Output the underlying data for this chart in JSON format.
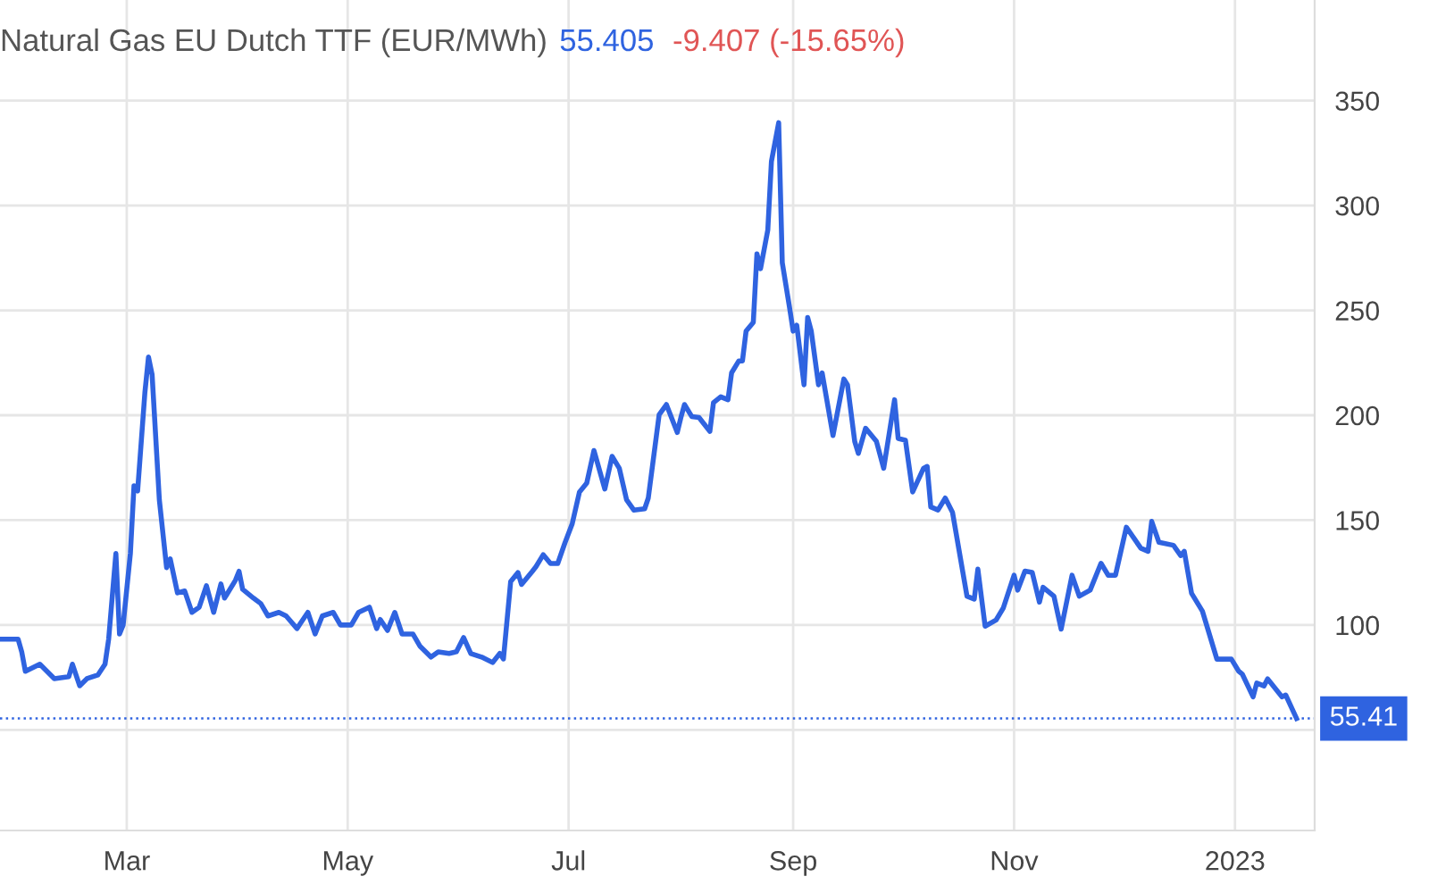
{
  "chart_data": {
    "type": "line",
    "title": "Natural Gas EU Dutch TTF (EUR/MWh)",
    "annotations": [
      "55.405",
      "-9.407 (-15.65%)"
    ],
    "x": [
      "2022-01-25",
      "2022-01-30",
      "2022-01-31",
      "2022-02-01",
      "2022-02-05",
      "2022-02-09",
      "2022-02-13",
      "2022-02-14",
      "2022-02-16",
      "2022-02-18",
      "2022-02-21",
      "2022-02-23",
      "2022-02-24",
      "2022-02-26",
      "2022-02-27",
      "2022-02-28",
      "2022-03-02",
      "2022-03-03",
      "2022-03-04",
      "2022-03-06",
      "2022-03-07",
      "2022-03-08",
      "2022-03-10",
      "2022-03-12",
      "2022-03-13",
      "2022-03-15",
      "2022-03-17",
      "2022-03-19",
      "2022-03-21",
      "2022-03-23",
      "2022-03-25",
      "2022-03-27",
      "2022-03-28",
      "2022-03-31",
      "2022-04-01",
      "2022-04-02",
      "2022-04-05",
      "2022-04-07",
      "2022-04-09",
      "2022-04-12",
      "2022-04-14",
      "2022-04-17",
      "2022-04-18",
      "2022-04-20",
      "2022-04-22",
      "2022-04-24",
      "2022-04-27",
      "2022-04-29",
      "2022-05-02",
      "2022-05-04",
      "2022-05-07",
      "2022-05-09",
      "2022-05-10",
      "2022-05-12",
      "2022-05-14",
      "2022-05-16",
      "2022-05-19",
      "2022-05-21",
      "2022-05-24",
      "2022-05-26",
      "2022-05-29",
      "2022-05-31",
      "2022-06-02",
      "2022-06-04",
      "2022-06-07",
      "2022-06-10",
      "2022-06-12",
      "2022-06-13",
      "2022-06-15",
      "2022-06-17",
      "2022-06-18",
      "2022-06-21",
      "2022-06-22",
      "2022-06-24",
      "2022-06-26",
      "2022-06-28",
      "2022-06-30",
      "2022-07-02",
      "2022-07-04",
      "2022-07-06",
      "2022-07-08",
      "2022-07-11",
      "2022-07-13",
      "2022-07-15",
      "2022-07-17",
      "2022-07-19",
      "2022-07-22",
      "2022-07-23",
      "2022-07-26",
      "2022-07-28",
      "2022-07-31",
      "2022-08-01",
      "2022-08-02",
      "2022-08-04",
      "2022-08-06",
      "2022-08-09",
      "2022-08-10",
      "2022-08-12",
      "2022-08-14",
      "2022-08-15",
      "2022-08-17",
      "2022-08-18",
      "2022-08-19",
      "2022-08-21",
      "2022-08-22",
      "2022-08-23",
      "2022-08-25",
      "2022-08-26",
      "2022-08-28",
      "2022-08-29",
      "2022-08-31",
      "2022-09-01",
      "2022-09-02",
      "2022-09-04",
      "2022-09-05",
      "2022-09-06",
      "2022-09-08",
      "2022-09-09",
      "2022-09-12",
      "2022-09-15",
      "2022-09-16",
      "2022-09-18",
      "2022-09-19",
      "2022-09-21",
      "2022-09-24",
      "2022-09-26",
      "2022-09-29",
      "2022-09-30",
      "2022-10-02",
      "2022-10-04",
      "2022-10-07",
      "2022-10-08",
      "2022-10-09",
      "2022-10-11",
      "2022-10-13",
      "2022-10-15",
      "2022-10-19",
      "2022-10-21",
      "2022-10-22",
      "2022-10-24",
      "2022-10-27",
      "2022-10-29",
      "2022-11-01",
      "2022-11-02",
      "2022-11-04",
      "2022-11-06",
      "2022-11-08",
      "2022-11-09",
      "2022-11-12",
      "2022-11-14",
      "2022-11-17",
      "2022-11-19",
      "2022-11-22",
      "2022-11-25",
      "2022-11-27",
      "2022-11-29",
      "2022-12-02",
      "2022-12-06",
      "2022-12-08",
      "2022-12-09",
      "2022-12-11",
      "2022-12-15",
      "2022-12-17",
      "2022-12-18",
      "2022-12-20",
      "2022-12-23",
      "2022-12-27",
      "2022-12-31",
      "2023-01-02",
      "2023-01-03",
      "2023-01-06",
      "2023-01-07",
      "2023-01-09",
      "2023-01-10",
      "2023-01-14",
      "2023-01-15",
      "2023-01-18"
    ],
    "series": [
      {
        "color": "#2f63e0",
        "values": [
          93.2,
          93.2,
          87.2,
          77.9,
          81.3,
          74.4,
          75.3,
          81.3,
          71.0,
          74.4,
          76.1,
          81.3,
          93.2,
          134.1,
          95.7,
          100,
          134.1,
          166.4,
          163.9,
          210.7,
          227.8,
          219.3,
          159.6,
          127.3,
          131.5,
          115.3,
          116.2,
          106.0,
          108.5,
          118.7,
          106.0,
          119.6,
          112.8,
          121.3,
          125.6,
          117.0,
          112.8,
          110.2,
          104.3,
          106.0,
          104.3,
          98.3,
          100.9,
          106.0,
          95.7,
          104.3,
          106.0,
          100,
          100,
          106.0,
          108.5,
          98.3,
          102.6,
          97.4,
          106.0,
          95.7,
          95.7,
          89.8,
          84.7,
          87.2,
          86.4,
          87.2,
          94.0,
          86.4,
          84.7,
          82.1,
          86.4,
          83.8,
          120.7,
          125.0,
          119.3,
          125.6,
          127.8,
          133.5,
          129.3,
          129.3,
          139.2,
          148.3,
          163.4,
          167.6,
          183.2,
          164.8,
          180.4,
          174.7,
          159.7,
          154.8,
          155.4,
          160.5,
          200.3,
          205.1,
          191.8,
          198.9,
          205.1,
          199.4,
          198.9,
          192.3,
          206.0,
          208.8,
          207.4,
          220.2,
          225.9,
          225.9,
          240.1,
          244.3,
          277.0,
          269.9,
          288.4,
          321.0,
          339.5,
          272.7,
          251.4,
          240.1,
          242.9,
          214.5,
          246.6,
          240.1,
          214.5,
          220.2,
          190.3,
          217.3,
          214.5,
          187.5,
          181.8,
          193.8,
          187.5,
          174.7,
          207.4,
          188.9,
          188.1,
          163.4,
          174.7,
          175.6,
          156.3,
          154.8,
          160.5,
          153.7,
          113.7,
          112.3,
          126.6,
          99.4,
          102.3,
          108.0,
          123.7,
          116.6,
          125.7,
          125.1,
          110.9,
          118.0,
          113.7,
          98.0,
          123.7,
          113.7,
          116.6,
          129.4,
          123.7,
          123.7,
          146.6,
          136.6,
          135.1,
          149.4,
          139.4,
          138.0,
          133.1,
          135.1,
          115.1,
          106.6,
          83.7,
          83.7,
          78.0,
          76.6,
          65.7,
          72.3,
          70.9,
          74.3,
          65.7,
          66.6,
          55.405
        ]
      }
    ],
    "xlim": [
      "2022-01-25",
      "2023-01-23"
    ],
    "xticks": [
      {
        "value": "2022-03-01",
        "label": "Mar"
      },
      {
        "value": "2022-05-01",
        "label": "May"
      },
      {
        "value": "2022-07-01",
        "label": "Jul"
      },
      {
        "value": "2022-09-01",
        "label": "Sep"
      },
      {
        "value": "2022-11-01",
        "label": "Nov"
      },
      {
        "value": "2023-01-01",
        "label": "2023"
      }
    ],
    "ylim": [
      2,
      398
    ],
    "yticks": [
      {
        "value": 50,
        "label": null
      },
      100,
      150,
      200,
      250,
      300,
      350
    ],
    "ref_lines": [
      {
        "axis": "y",
        "value": 55.405,
        "label": "55.41",
        "color": "#2f63e0",
        "line_style": "dotted"
      }
    ],
    "grid": true,
    "legend": false,
    "marker": "none",
    "line_style": "solid"
  }
}
